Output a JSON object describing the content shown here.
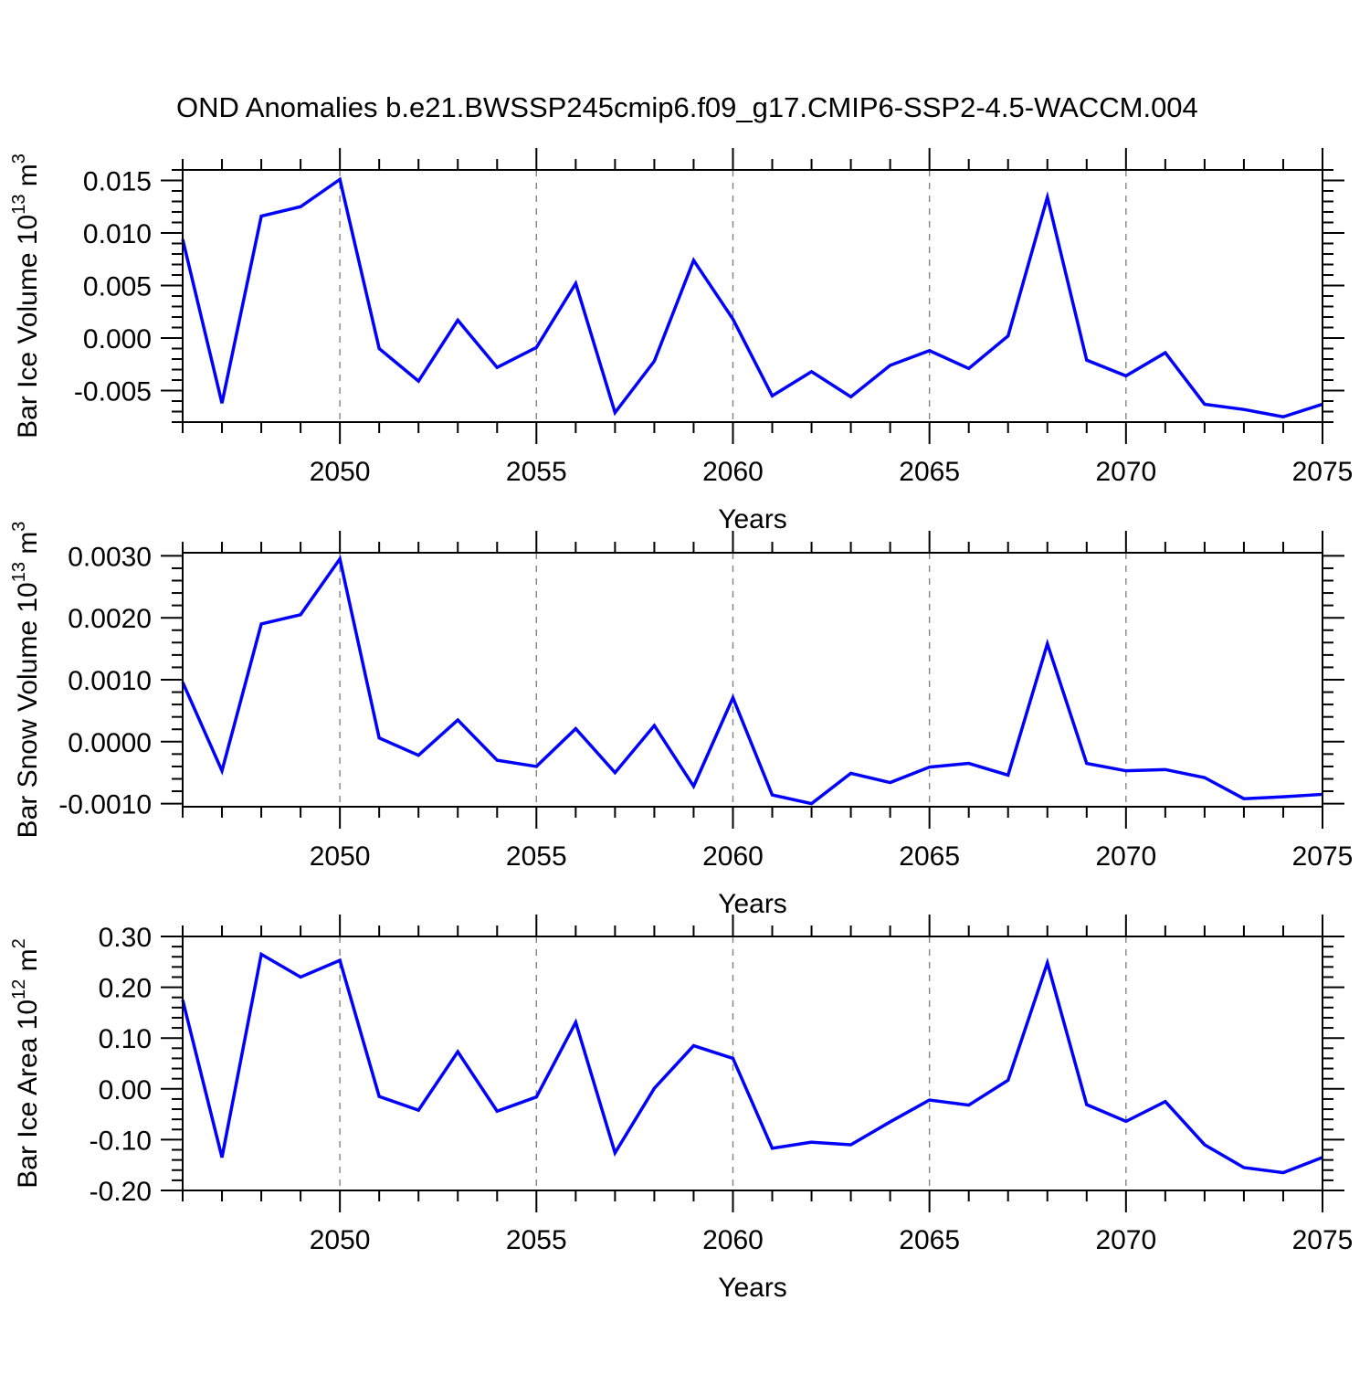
{
  "title": "OND Anomalies b.e21.BWSSP245cmip6.f09_g17.CMIP6-SSP2-4.5-WACCM.004",
  "style": {
    "line_color": "#0000ff",
    "frame_color": "#000000",
    "gridline_color": "#848484",
    "text_color": "#000000",
    "background": "#ffffff"
  },
  "years": [
    2046,
    2047,
    2048,
    2049,
    2050,
    2051,
    2052,
    2053,
    2054,
    2055,
    2056,
    2057,
    2058,
    2059,
    2060,
    2061,
    2062,
    2063,
    2064,
    2065,
    2066,
    2067,
    2068,
    2069,
    2070,
    2071,
    2072,
    2073,
    2074,
    2075
  ],
  "x_axis": {
    "label": "Years",
    "range": [
      2046,
      2075
    ],
    "major_tick_years": [
      2050,
      2055,
      2060,
      2065,
      2070,
      2075
    ],
    "major_tick_labels": [
      "2050",
      "2055",
      "2060",
      "2065",
      "2070",
      "2075"
    ],
    "minor_tick_step_years": 1,
    "gridline_years": [
      2050,
      2055,
      2060,
      2065,
      2070
    ]
  },
  "chart_data": [
    {
      "type": "line",
      "name": "ice-volume",
      "ylabel": "Bar Ice Volume 10^13 m^3",
      "ylabel_parts": [
        {
          "text": "Bar Ice Volume 10",
          "sup": false
        },
        {
          "text": "13",
          "sup": true
        },
        {
          "text": " m",
          "sup": false
        },
        {
          "text": "3",
          "sup": true
        }
      ],
      "xlabel": "Years",
      "ylim": [
        -0.008,
        0.016
      ],
      "minor_tick_step": 0.001,
      "grid": "x-dashed",
      "legend": "none",
      "yticks": [
        {
          "value": 0.015,
          "label": "0.015"
        },
        {
          "value": 0.01,
          "label": "0.010"
        },
        {
          "value": 0.005,
          "label": "0.005"
        },
        {
          "value": 0.0,
          "label": "0.000"
        },
        {
          "value": -0.005,
          "label": "-0.005"
        }
      ],
      "values": [
        0.0094,
        -0.0062,
        0.0116,
        0.0125,
        0.0151,
        -0.001,
        -0.0041,
        0.0017,
        -0.0028,
        -0.0009,
        0.0052,
        -0.0071,
        -0.0022,
        0.0074,
        0.0018,
        -0.0055,
        -0.0032,
        -0.0056,
        -0.0026,
        -0.0012,
        -0.0029,
        0.0002,
        0.0134,
        -0.0021,
        -0.0036,
        -0.0014,
        -0.0063,
        -0.0068,
        -0.0075,
        -0.0063
      ]
    },
    {
      "type": "line",
      "name": "snow-volume",
      "ylabel": "Bar Snow Volume 10^13 m^3",
      "ylabel_parts": [
        {
          "text": "Bar Snow Volume 10",
          "sup": false
        },
        {
          "text": "13",
          "sup": true
        },
        {
          "text": " m",
          "sup": false
        },
        {
          "text": "3",
          "sup": true
        }
      ],
      "xlabel": "Years",
      "ylim": [
        -0.00105,
        0.00305
      ],
      "minor_tick_step": 0.0002,
      "grid": "x-dashed",
      "legend": "none",
      "yticks": [
        {
          "value": 0.003,
          "label": "0.0030"
        },
        {
          "value": 0.002,
          "label": "0.0020"
        },
        {
          "value": 0.001,
          "label": "0.0010"
        },
        {
          "value": 0.0,
          "label": "0.0000"
        },
        {
          "value": -0.001,
          "label": "-0.0010"
        }
      ],
      "values": [
        0.00096,
        -0.00047,
        0.0019,
        0.00205,
        0.00295,
        6e-05,
        -0.00022,
        0.00035,
        -0.0003,
        -0.0004,
        0.00021,
        -0.0005,
        0.00026,
        -0.00072,
        0.00071,
        -0.00086,
        -0.001,
        -0.00051,
        -0.00066,
        -0.00041,
        -0.00035,
        -0.00054,
        0.00158,
        -0.00035,
        -0.00047,
        -0.00045,
        -0.00058,
        -0.00092,
        -0.00089,
        -0.00085
      ]
    },
    {
      "type": "line",
      "name": "ice-area",
      "ylabel": "Bar Ice Area 10^12 m^2",
      "ylabel_parts": [
        {
          "text": "Bar Ice Area 10",
          "sup": false
        },
        {
          "text": "12",
          "sup": true
        },
        {
          "text": " m",
          "sup": false
        },
        {
          "text": "2",
          "sup": true
        }
      ],
      "xlabel": "Years",
      "ylim": [
        -0.2,
        0.3
      ],
      "minor_tick_step": 0.02,
      "grid": "x-dashed",
      "legend": "none",
      "yticks": [
        {
          "value": 0.3,
          "label": "0.30"
        },
        {
          "value": 0.2,
          "label": "0.20"
        },
        {
          "value": 0.1,
          "label": "0.10"
        },
        {
          "value": 0.0,
          "label": "0.00"
        },
        {
          "value": -0.1,
          "label": "-0.10"
        },
        {
          "value": -0.2,
          "label": "-0.20"
        }
      ],
      "values": [
        0.175,
        -0.135,
        0.265,
        0.22,
        0.253,
        -0.015,
        -0.042,
        0.073,
        -0.044,
        -0.016,
        0.131,
        -0.126,
        0.001,
        0.085,
        0.06,
        -0.117,
        -0.105,
        -0.11,
        -0.065,
        -0.022,
        -0.032,
        0.017,
        0.248,
        -0.031,
        -0.064,
        -0.025,
        -0.11,
        -0.155,
        -0.165,
        -0.135
      ]
    }
  ]
}
